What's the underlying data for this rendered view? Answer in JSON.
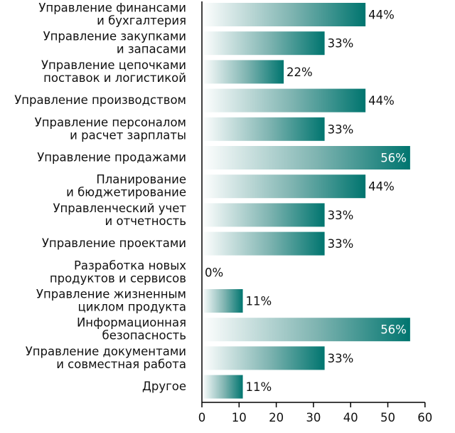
{
  "chart_data": {
    "type": "bar",
    "orientation": "horizontal",
    "categories": [
      [
        "Управление финансами",
        "и бухгалтерия"
      ],
      [
        "Управление закупками",
        "и запасами"
      ],
      [
        "Управление цепочками",
        "поставок и логистикой"
      ],
      [
        "Управление производством"
      ],
      [
        "Управление персоналом",
        "и расчет зарплаты"
      ],
      [
        "Управление продажами"
      ],
      [
        "Планирование",
        "и бюджетирование"
      ],
      [
        "Управленческий учет",
        "и отчетность"
      ],
      [
        "Управление проектами"
      ],
      [
        "Разработка новых",
        "продуктов и сервисов"
      ],
      [
        "Управление жизненным",
        "циклом продукта"
      ],
      [
        "Информационная",
        "безопасность"
      ],
      [
        "Управление документами",
        "и совместная работа"
      ],
      [
        "Другое"
      ]
    ],
    "values": [
      44,
      33,
      22,
      44,
      33,
      56,
      44,
      33,
      33,
      0,
      11,
      56,
      33,
      11
    ],
    "value_labels": [
      "44%",
      "33%",
      "22%",
      "44%",
      "33%",
      "56%",
      "44%",
      "33%",
      "33%",
      "0%",
      "11%",
      "56%",
      "33%",
      "11%"
    ],
    "xlim": [
      0,
      60
    ],
    "xticks": [
      0,
      10,
      20,
      30,
      40,
      50,
      60
    ],
    "grid": false,
    "colors": {
      "bar_start": "#ffffff",
      "bar_end": "#00756f",
      "axis": "#000000",
      "text": "#111111"
    }
  }
}
